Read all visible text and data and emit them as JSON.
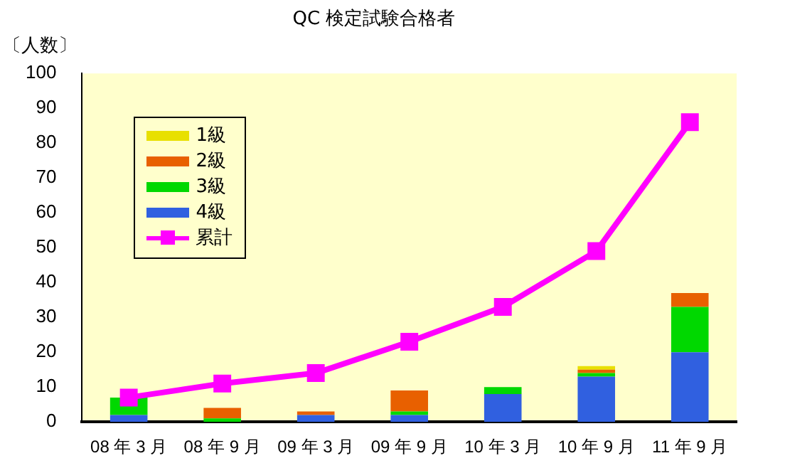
{
  "chart_data": {
    "type": "bar",
    "title": "QC 検定試験合格者",
    "ylabel": "〔人数〕",
    "categories": [
      "08 年 3 月",
      "08 年 9 月",
      "09 年 3 月",
      "09 年 9 月",
      "10 年 3 月",
      "10 年 9 月",
      "11 年 9 月"
    ],
    "stacked": true,
    "ylim": [
      0,
      100
    ],
    "yticks": [
      0,
      10,
      20,
      30,
      40,
      50,
      60,
      70,
      80,
      90,
      100
    ],
    "grid": false,
    "legend": "top left",
    "marker": "square",
    "series": [
      {
        "name": "4級",
        "color": "#3060e0",
        "values": [
          2,
          0,
          2,
          2,
          8,
          13,
          20
        ]
      },
      {
        "name": "3級",
        "color": "#00d800",
        "values": [
          5,
          1,
          0,
          1,
          2,
          1,
          13
        ]
      },
      {
        "name": "2級",
        "color": "#e86000",
        "values": [
          0,
          3,
          1,
          6,
          0,
          1,
          4
        ]
      },
      {
        "name": "1級",
        "color": "#e8e000",
        "values": [
          0,
          0,
          0,
          0,
          0,
          1,
          0
        ]
      },
      {
        "name": "累計",
        "type": "line",
        "color": "#ff00ff",
        "values": [
          7,
          11,
          14,
          23,
          33,
          49,
          86
        ]
      }
    ]
  }
}
